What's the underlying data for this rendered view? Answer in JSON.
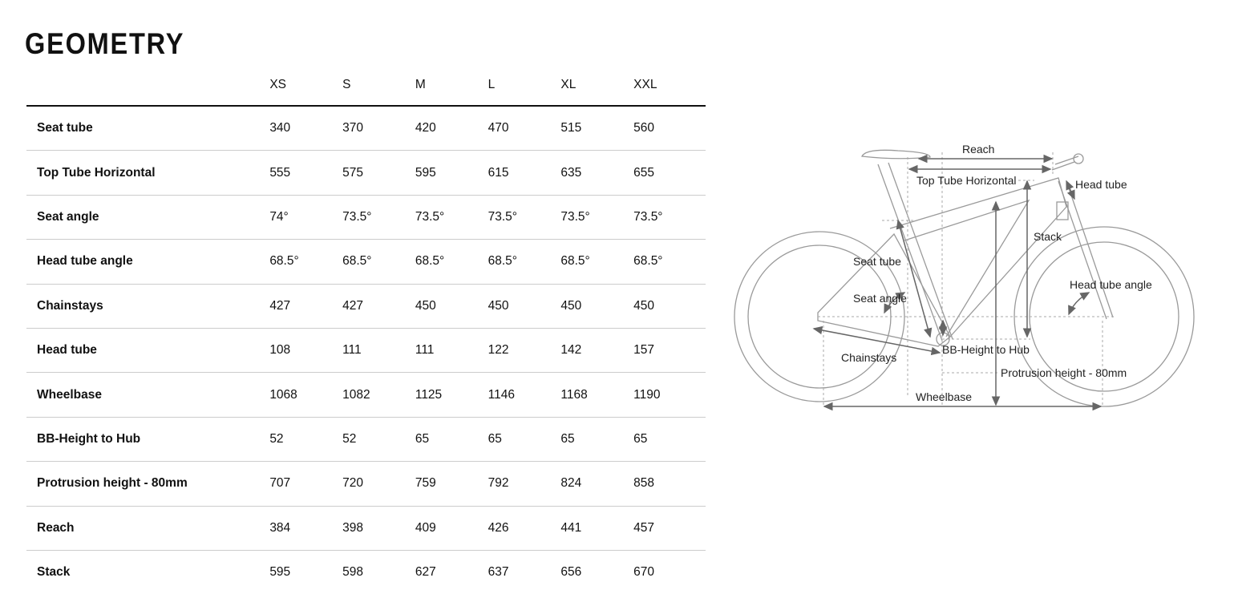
{
  "title": "GEOMETRY",
  "table": {
    "sizes": [
      "XS",
      "S",
      "M",
      "L",
      "XL",
      "XXL"
    ],
    "rows": [
      {
        "label": "Seat tube",
        "values": [
          "340",
          "370",
          "420",
          "470",
          "515",
          "560"
        ]
      },
      {
        "label": "Top Tube Horizontal",
        "values": [
          "555",
          "575",
          "595",
          "615",
          "635",
          "655"
        ]
      },
      {
        "label": "Seat angle",
        "values": [
          "74°",
          "73.5°",
          "73.5°",
          "73.5°",
          "73.5°",
          "73.5°"
        ]
      },
      {
        "label": "Head tube angle",
        "values": [
          "68.5°",
          "68.5°",
          "68.5°",
          "68.5°",
          "68.5°",
          "68.5°"
        ]
      },
      {
        "label": "Chainstays",
        "values": [
          "427",
          "427",
          "450",
          "450",
          "450",
          "450"
        ]
      },
      {
        "label": "Head tube",
        "values": [
          "108",
          "111",
          "111",
          "122",
          "142",
          "157"
        ]
      },
      {
        "label": "Wheelbase",
        "values": [
          "1068",
          "1082",
          "1125",
          "1146",
          "1168",
          "1190"
        ]
      },
      {
        "label": "BB-Height to Hub",
        "values": [
          "52",
          "52",
          "65",
          "65",
          "65",
          "65"
        ]
      },
      {
        "label": "Protrusion height - 80mm",
        "values": [
          "707",
          "720",
          "759",
          "792",
          "824",
          "858"
        ]
      },
      {
        "label": "Reach",
        "values": [
          "384",
          "398",
          "409",
          "426",
          "441",
          "457"
        ]
      },
      {
        "label": "Stack",
        "values": [
          "595",
          "598",
          "627",
          "637",
          "656",
          "670"
        ]
      }
    ]
  },
  "diagram": {
    "labels": {
      "reach": "Reach",
      "top_tube": "Top Tube Horizontal",
      "head_tube": "Head tube",
      "stack": "Stack",
      "seat_tube": "Seat tube",
      "head_tube_angle": "Head tube angle",
      "seat_angle": "Seat angle",
      "bb_height": "BB-Height to Hub",
      "chainstays": "Chainstays",
      "protrusion": "Protrusion height - 80mm",
      "wheelbase": "Wheelbase"
    },
    "colors": {
      "frame": "#9a9a9a",
      "arrow": "#666666"
    }
  }
}
